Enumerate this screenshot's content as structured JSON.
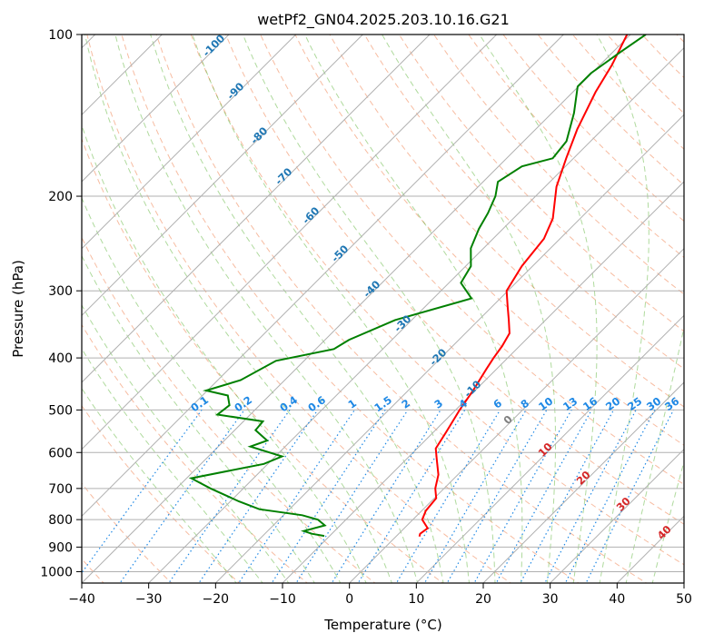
{
  "chart_data": {
    "type": "line",
    "title": "wetPf2_GN04.2025.203.10.16.G21",
    "xlabel": "Temperature (°C)",
    "ylabel": "Pressure (hPa)",
    "xlim": [
      -40,
      50
    ],
    "ylim_pressure": [
      1050,
      100
    ],
    "y_scale": "log",
    "x_ticks": [
      -40,
      -30,
      -20,
      -10,
      0,
      10,
      20,
      30,
      40,
      50
    ],
    "y_ticks": [
      100,
      200,
      300,
      400,
      500,
      600,
      700,
      800,
      900,
      1000
    ],
    "grid": true,
    "series": [
      {
        "role": "temperature",
        "color": "#ff0000",
        "points": [
          [
            -40.5,
            100
          ],
          [
            -38.2,
            114
          ],
          [
            -36.6,
            128
          ],
          [
            -33.8,
            150
          ],
          [
            -31.1,
            170
          ],
          [
            -28.3,
            192
          ],
          [
            -24.1,
            220
          ],
          [
            -22.4,
            240
          ],
          [
            -21.6,
            270
          ],
          [
            -20.2,
            300
          ],
          [
            -17.8,
            320
          ],
          [
            -15.5,
            340
          ],
          [
            -13.4,
            360
          ],
          [
            -12.6,
            380
          ],
          [
            -12.1,
            400
          ],
          [
            -11.5,
            420
          ],
          [
            -10.3,
            460
          ],
          [
            -9.4,
            500
          ],
          [
            -8.1,
            550
          ],
          [
            -7.2,
            590
          ],
          [
            -5.3,
            620
          ],
          [
            -2.9,
            660
          ],
          [
            -1.3,
            700
          ],
          [
            0.3,
            730
          ],
          [
            0.6,
            770
          ],
          [
            1.4,
            800
          ],
          [
            3.5,
            830
          ],
          [
            3.2,
            850
          ],
          [
            3.5,
            860
          ]
        ]
      },
      {
        "role": "dewpoint",
        "color": "#008000",
        "points": [
          [
            -37.7,
            100
          ],
          [
            -38.9,
            108
          ],
          [
            -40.1,
            118
          ],
          [
            -40.1,
            125
          ],
          [
            -36.7,
            140
          ],
          [
            -33.6,
            158
          ],
          [
            -33.1,
            170
          ],
          [
            -36.5,
            176
          ],
          [
            -37.8,
            188
          ],
          [
            -36.0,
            200
          ],
          [
            -34.6,
            215
          ],
          [
            -33.6,
            230
          ],
          [
            -31.9,
            250
          ],
          [
            -29.2,
            270
          ],
          [
            -28.2,
            290
          ],
          [
            -24.3,
            310
          ],
          [
            -32.5,
            340
          ],
          [
            -36.4,
            370
          ],
          [
            -37.3,
            385
          ],
          [
            -44.2,
            405
          ],
          [
            -46.6,
            440
          ],
          [
            -50.2,
            460
          ],
          [
            -46.2,
            470
          ],
          [
            -44.5,
            490
          ],
          [
            -44.9,
            510
          ],
          [
            -37.1,
            525
          ],
          [
            -36.9,
            545
          ],
          [
            -33.6,
            570
          ],
          [
            -35.2,
            585
          ],
          [
            -29.0,
            610
          ],
          [
            -30.6,
            630
          ],
          [
            -39.3,
            670
          ],
          [
            -34.9,
            700
          ],
          [
            -28.7,
            740
          ],
          [
            -24.5,
            765
          ],
          [
            -17.2,
            785
          ],
          [
            -14.2,
            800
          ],
          [
            -12.3,
            820
          ],
          [
            -14.6,
            840
          ],
          [
            -13.0,
            850
          ],
          [
            -10.8,
            858
          ]
        ]
      }
    ],
    "mixing_ratio_labels": [
      "0.1",
      "0.2",
      "0.4",
      "0.6",
      "1",
      "1.5",
      "2",
      "3",
      "4",
      "6",
      "8",
      "10",
      "13",
      "16",
      "20",
      "25",
      "30",
      "36"
    ],
    "dry_adiabat_labels": [
      "-100",
      "-90",
      "-80",
      "-70",
      "-60",
      "-50",
      "-40",
      "-30",
      "-20",
      "-10",
      "0",
      "10",
      "20",
      "30",
      "40"
    ],
    "colors": {
      "grid": "#b0b0b0",
      "dry_adiabat": "#f4a582",
      "moist_adiabat": "#4dac26",
      "mixing_ratio": "#1e88e5",
      "label_blue": "#1f77b4",
      "label_red": "#d62728",
      "label_gray": "#7f7f7f"
    }
  }
}
